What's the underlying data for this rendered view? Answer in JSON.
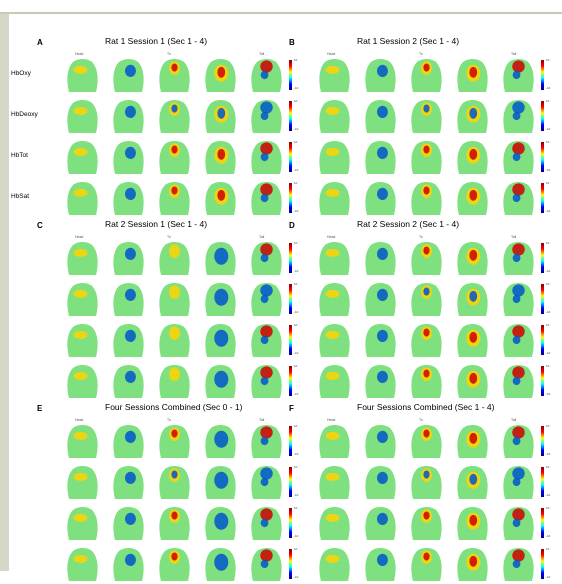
{
  "row_labels": [
    "HbOxy",
    "HbDeoxy",
    "HbTot",
    "HbSat"
  ],
  "column_labels": [
    "Head",
    "",
    "Tx",
    "",
    "Tail"
  ],
  "colors": {
    "background": "#ffffff",
    "frame_left": "#d7d7c7",
    "brain_green": "#7fe07f",
    "activation_red": "#cc0000",
    "activation_yellow": "#ffd200",
    "activation_blue": "#0055cc"
  },
  "colorbar_ticks": {
    "top": "10",
    "bottom": "-10"
  },
  "panels": [
    {
      "label": "A",
      "title": "Rat 1 Session 1 (Sec 1 - 4)"
    },
    {
      "label": "B",
      "title": "Rat 1 Session 2 (Sec 1 - 4)"
    },
    {
      "label": "C",
      "title": "Rat 2 Session 1 (Sec 1 - 4)"
    },
    {
      "label": "D",
      "title": "Rat 2 Session 2 (Sec 1 - 4)"
    },
    {
      "label": "E",
      "title": "Four Sessions Combined (Sec 0 - 1)"
    },
    {
      "label": "F",
      "title": "Four Sessions Combined (Sec 1 - 4)"
    }
  ]
}
